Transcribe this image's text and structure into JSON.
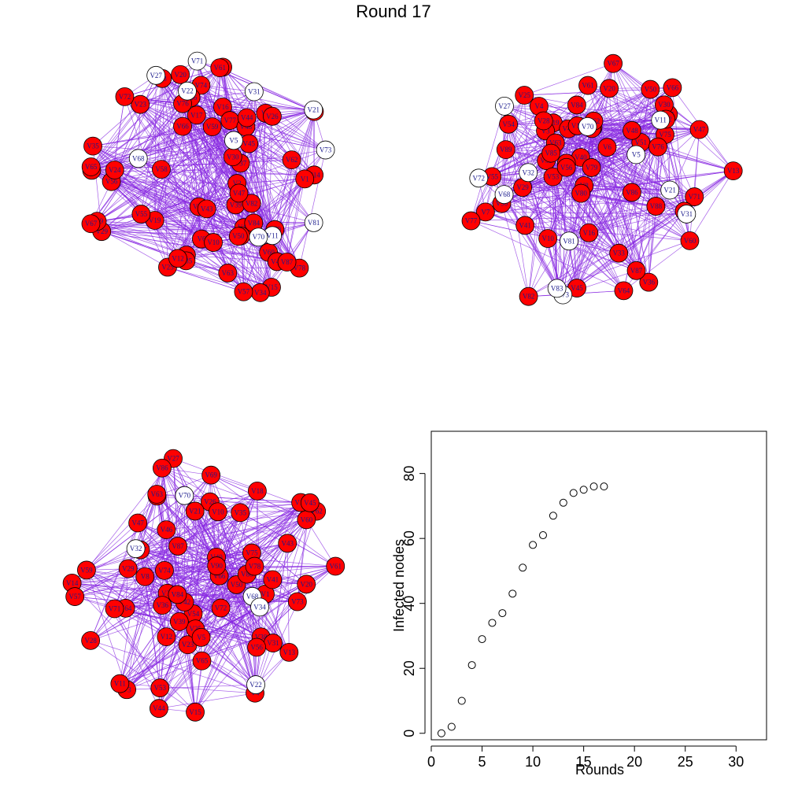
{
  "title": "Round 17",
  "colors": {
    "infected": "#ff0000",
    "susceptible": "#ffffff",
    "edge": "#8a2be2",
    "label": "#1a1a8c"
  },
  "networks": [
    {
      "white": [
        "V5",
        "V27",
        "V31",
        "V11",
        "V21",
        "V71",
        "V22",
        "V73",
        "V81",
        "V70",
        "V68"
      ],
      "red": [
        "V9",
        "V25",
        "V23",
        "V6",
        "V18",
        "V13",
        "V3",
        "V15",
        "V16",
        "V14",
        "V29",
        "V19",
        "V37",
        "V30",
        "V1",
        "V72",
        "V17",
        "V39",
        "V77",
        "V33",
        "V34",
        "V74",
        "V2",
        "V80",
        "V82",
        "V89",
        "V79",
        "V55",
        "V61",
        "V65",
        "V58",
        "V47",
        "V40",
        "V50",
        "V52",
        "V59",
        "V35",
        "V36",
        "V67",
        "V60",
        "V62",
        "V66",
        "V48",
        "V43",
        "V84",
        "V86",
        "V85",
        "V57",
        "V56",
        "V63",
        "V20",
        "V76",
        "V12",
        "V78",
        "V10",
        "V42",
        "V45",
        "V44",
        "V26",
        "V87",
        "V24"
      ]
    },
    {
      "white": [
        "V70",
        "V68",
        "V11",
        "V81",
        "V31",
        "V32",
        "V72",
        "V73",
        "V5",
        "V21",
        "V27",
        "V83"
      ],
      "red": [
        "V66",
        "V19",
        "V20",
        "V60",
        "V59",
        "V61",
        "V3",
        "V67",
        "V33",
        "V4",
        "V65",
        "V7",
        "V8",
        "V64",
        "V63",
        "V40",
        "V45",
        "V46",
        "V50",
        "V36",
        "V51",
        "V13",
        "V18",
        "V80",
        "V82",
        "V79",
        "V78",
        "V71",
        "V75",
        "V47",
        "V25",
        "V76",
        "V48",
        "V74",
        "V30",
        "V86",
        "V85",
        "V53",
        "V37",
        "V41",
        "V29",
        "V28",
        "V6",
        "V42",
        "V56",
        "V84",
        "V90",
        "V89",
        "V87",
        "V88",
        "V52",
        "V54",
        "V16",
        "V55",
        "V62",
        "V77",
        "V10"
      ]
    },
    {
      "white": [
        "V70",
        "V68",
        "V32",
        "V34",
        "V22"
      ],
      "red": [
        "V9",
        "V20",
        "V13",
        "V72",
        "V38",
        "V37",
        "V62",
        "V64",
        "V60",
        "V59",
        "V1",
        "V4",
        "V31",
        "V33",
        "V3",
        "V23",
        "V14",
        "V66",
        "V63",
        "V53",
        "V35",
        "V36",
        "V56",
        "V54",
        "V12",
        "V27",
        "V71",
        "V73",
        "V75",
        "V15",
        "V17",
        "V57",
        "V44",
        "V43",
        "V29",
        "V46",
        "V25",
        "V42",
        "V47",
        "V40",
        "V26",
        "V41",
        "V84",
        "V28",
        "V86",
        "V8",
        "V45",
        "V11",
        "V10",
        "V90",
        "V50",
        "V88",
        "V87",
        "V5",
        "V39",
        "V21",
        "V78",
        "V65",
        "V69",
        "V18",
        "V61",
        "V74"
      ]
    }
  ],
  "chart_data": {
    "type": "scatter",
    "x": [
      1,
      2,
      3,
      4,
      5,
      6,
      7,
      8,
      9,
      10,
      11,
      12,
      13,
      14,
      15,
      16,
      17
    ],
    "y": [
      0,
      2,
      10,
      21,
      29,
      34,
      37,
      43,
      51,
      58,
      61,
      67,
      71,
      74,
      75,
      76,
      76
    ],
    "xlabel": "Rounds",
    "ylabel": "Infected nodes",
    "xlim": [
      0,
      33
    ],
    "ylim": [
      -2,
      93
    ],
    "xticks": [
      "0",
      "5",
      "10",
      "15",
      "20",
      "25",
      "30"
    ],
    "yticks": [
      "0",
      "20",
      "40",
      "60",
      "80"
    ],
    "grid": false
  }
}
